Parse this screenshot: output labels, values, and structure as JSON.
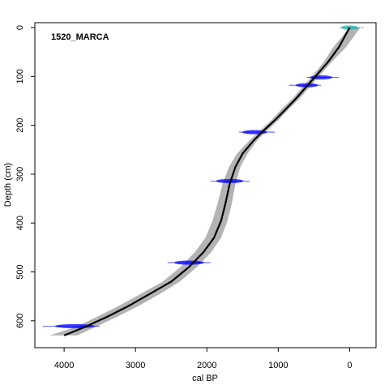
{
  "chart_data": {
    "type": "line",
    "title": "1520_MARCA",
    "xlabel": "cal BP",
    "ylabel": "Depth (cm)",
    "x_reversed": true,
    "y_reversed": true,
    "xlim": [
      4410,
      -370
    ],
    "ylim": [
      -10,
      655
    ],
    "x_ticks": [
      4000,
      3000,
      2000,
      1000,
      0
    ],
    "y_ticks": [
      0,
      100,
      200,
      300,
      400,
      500,
      600
    ],
    "colors": {
      "model_line": "#000000",
      "uncertainty_band": "#b3b3b3",
      "calibrated_date": "#0000ff",
      "surface_date": "#20b2aa"
    },
    "series": [
      {
        "role": "age-depth model (mean)",
        "x": [
          0,
          150,
          300,
          450,
          600,
          750,
          900,
          1050,
          1200,
          1350,
          1500,
          1600,
          1680,
          1740,
          1800,
          1900,
          2050,
          2250,
          2500,
          2800,
          3100,
          3400,
          3700,
          4000
        ],
        "y": [
          0,
          40,
          70,
          95,
          120,
          145,
          168,
          190,
          210,
          232,
          258,
          285,
          320,
          360,
          395,
          430,
          460,
          490,
          520,
          545,
          570,
          592,
          612,
          630
        ]
      },
      {
        "role": "model uncertainty lower bound",
        "x": [
          -150,
          50,
          250,
          400,
          550,
          700,
          860,
          1000,
          1150,
          1300,
          1430,
          1530,
          1600,
          1650,
          1710,
          1800,
          1940,
          2140,
          2380,
          2660,
          2960,
          3260,
          3550,
          3820
        ],
        "y": [
          0,
          40,
          70,
          95,
          120,
          145,
          168,
          190,
          210,
          232,
          258,
          285,
          320,
          360,
          395,
          430,
          460,
          490,
          520,
          545,
          570,
          592,
          612,
          630
        ]
      },
      {
        "role": "model uncertainty upper bound",
        "x": [
          0,
          230,
          360,
          500,
          650,
          800,
          960,
          1100,
          1250,
          1410,
          1580,
          1690,
          1780,
          1850,
          1920,
          2020,
          2170,
          2370,
          2620,
          2930,
          3240,
          3540,
          3830,
          4200
        ],
        "y": [
          0,
          40,
          70,
          95,
          120,
          145,
          168,
          190,
          210,
          232,
          258,
          285,
          320,
          360,
          395,
          430,
          460,
          490,
          520,
          545,
          570,
          592,
          612,
          630
        ]
      }
    ],
    "dates": [
      {
        "depth": 0,
        "age": 0,
        "age_min": -200,
        "age_max": 150,
        "kind": "surface"
      },
      {
        "depth": 102,
        "age": 400,
        "age_min": 150,
        "age_max": 600,
        "kind": "calibrated"
      },
      {
        "depth": 118,
        "age": 600,
        "age_min": 400,
        "age_max": 850,
        "kind": "calibrated"
      },
      {
        "depth": 214,
        "age": 1330,
        "age_min": 1050,
        "age_max": 1550,
        "kind": "calibrated"
      },
      {
        "depth": 314,
        "age": 1680,
        "age_min": 1400,
        "age_max": 1950,
        "kind": "calibrated"
      },
      {
        "depth": 481,
        "age": 2250,
        "age_min": 1950,
        "age_max": 2550,
        "kind": "calibrated"
      },
      {
        "depth": 611,
        "age": 3850,
        "age_min": 3500,
        "age_max": 4300,
        "kind": "calibrated"
      }
    ]
  }
}
